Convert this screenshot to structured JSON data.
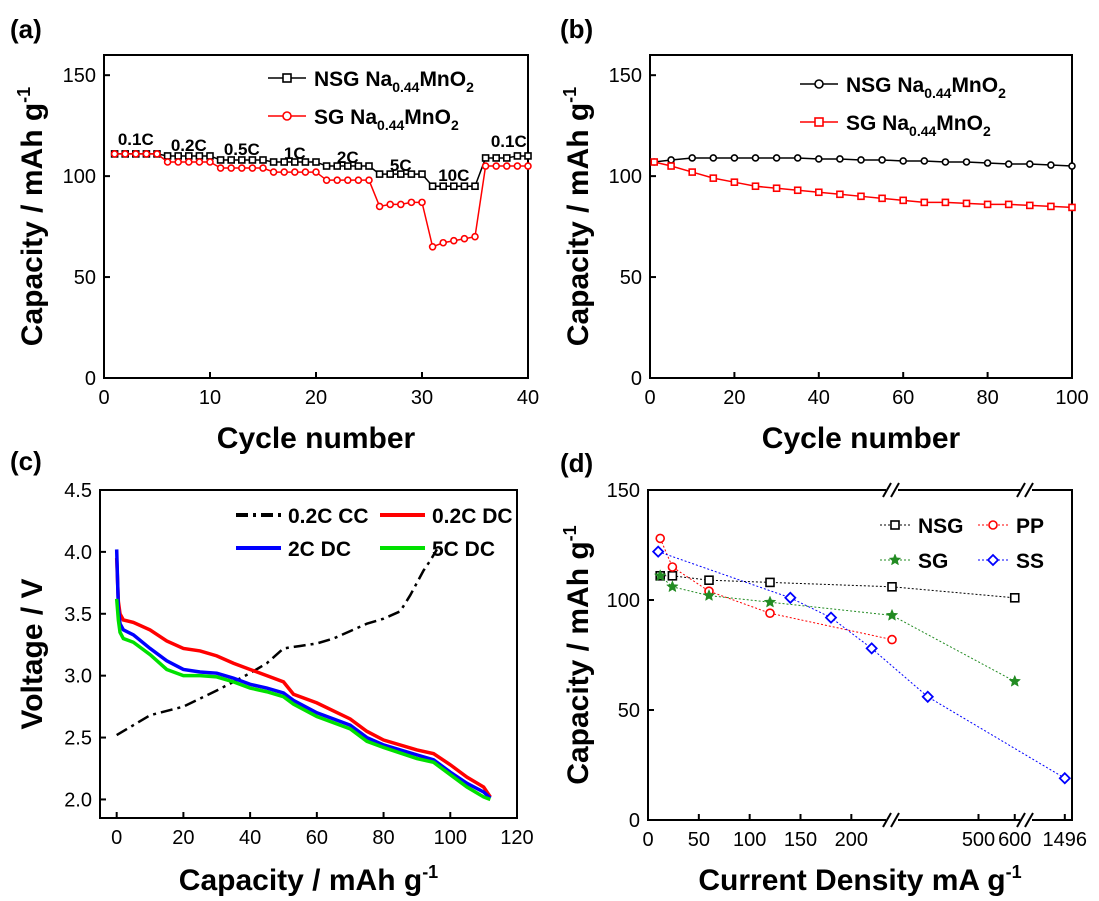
{
  "colors": {
    "black": "#000000",
    "red": "#ff0000",
    "blue": "#0000ff",
    "green": "#00e000",
    "darkgreen": "#228b22"
  },
  "chart_data": [
    {
      "panel": "(a)",
      "type": "line",
      "xlabel": "Cycle number",
      "ylabel": "Capacity / mAh g",
      "ylabel_sup": "-1",
      "xlim": [
        0,
        40
      ],
      "ylim": [
        0,
        160
      ],
      "xticks": [
        0,
        10,
        20,
        30,
        40
      ],
      "yticks": [
        0,
        50,
        100,
        150
      ],
      "legend_position": "top-right",
      "annotations": [
        "0.1C",
        "0.2C",
        "0.5C",
        "1C",
        "2C",
        "5C",
        "10C",
        "0.1C"
      ],
      "series": [
        {
          "name": "NSG Na0.44MnO2",
          "name_base": "NSG Na",
          "name_sub": "0.44",
          "name_mid": "MnO",
          "name_sub2": "2",
          "color": "#000000",
          "marker": "square",
          "x": [
            1,
            2,
            3,
            4,
            5,
            6,
            7,
            8,
            9,
            10,
            11,
            12,
            13,
            14,
            15,
            16,
            17,
            18,
            19,
            20,
            21,
            22,
            23,
            24,
            25,
            26,
            27,
            28,
            29,
            30,
            31,
            32,
            33,
            34,
            35,
            36,
            37,
            38,
            39,
            40
          ],
          "y": [
            111,
            111,
            111,
            111,
            111,
            110,
            110,
            110,
            110,
            110,
            108,
            108,
            108,
            108,
            108,
            107,
            107,
            107,
            107,
            107,
            105,
            105,
            105,
            105,
            105,
            101,
            101,
            101,
            101,
            101,
            95,
            95,
            95,
            95,
            95,
            109,
            109,
            109,
            110,
            110
          ]
        },
        {
          "name": "SG Na0.44MnO2",
          "name_base": "SG Na",
          "name_sub": "0.44",
          "name_mid": "MnO",
          "name_sub2": "2",
          "color": "#ff0000",
          "marker": "circle",
          "x": [
            1,
            2,
            3,
            4,
            5,
            6,
            7,
            8,
            9,
            10,
            11,
            12,
            13,
            14,
            15,
            16,
            17,
            18,
            19,
            20,
            21,
            22,
            23,
            24,
            25,
            26,
            27,
            28,
            29,
            30,
            31,
            32,
            33,
            34,
            35,
            36,
            37,
            38,
            39,
            40
          ],
          "y": [
            111,
            111,
            111,
            111,
            111,
            107,
            107,
            107,
            107,
            107,
            104,
            104,
            104,
            104,
            104,
            102,
            102,
            102,
            102,
            102,
            98,
            98,
            98,
            98,
            98,
            85,
            86,
            86,
            87,
            87,
            65,
            67,
            68,
            69,
            70,
            105,
            105,
            105,
            105,
            105
          ]
        }
      ]
    },
    {
      "panel": "(b)",
      "type": "line",
      "xlabel": "Cycle number",
      "ylabel": "Capacity / mAh g",
      "ylabel_sup": "-1",
      "xlim": [
        0,
        100
      ],
      "ylim": [
        0,
        160
      ],
      "xticks": [
        0,
        20,
        40,
        60,
        80,
        100
      ],
      "yticks": [
        0,
        50,
        100,
        150
      ],
      "legend_position": "top-right",
      "series": [
        {
          "name": "NSG Na0.44MnO2",
          "name_base": "NSG Na",
          "name_sub": "0.44",
          "name_mid": "MnO",
          "name_sub2": "2",
          "color": "#000000",
          "marker": "circle",
          "x": [
            1,
            5,
            10,
            15,
            20,
            25,
            30,
            35,
            40,
            45,
            50,
            55,
            60,
            65,
            70,
            75,
            80,
            85,
            90,
            95,
            100
          ],
          "y": [
            107,
            108,
            109,
            109,
            109,
            109,
            109,
            109,
            108.5,
            108.5,
            108,
            108,
            107.5,
            107.5,
            107,
            107,
            106.5,
            106,
            106,
            105.5,
            105
          ]
        },
        {
          "name": "SG Na0.44MnO2",
          "name_base": "SG Na",
          "name_sub": "0.44",
          "name_mid": "MnO",
          "name_sub2": "2",
          "color": "#ff0000",
          "marker": "square",
          "x": [
            1,
            5,
            10,
            15,
            20,
            25,
            30,
            35,
            40,
            45,
            50,
            55,
            60,
            65,
            70,
            75,
            80,
            85,
            90,
            95,
            100
          ],
          "y": [
            107,
            105,
            102,
            99,
            97,
            95,
            94,
            93,
            92,
            91,
            90,
            89,
            88,
            87,
            87,
            86.5,
            86,
            86,
            85.5,
            85,
            84.5
          ]
        }
      ]
    },
    {
      "panel": "(c)",
      "type": "line",
      "xlabel": "Capacity / mAh g",
      "xlabel_sup": "-1",
      "ylabel": "Voltage / V",
      "xlim": [
        -5,
        120
      ],
      "ylim": [
        1.85,
        4.5
      ],
      "xticks": [
        0,
        20,
        40,
        60,
        80,
        100,
        120
      ],
      "yticks": [
        2.0,
        2.5,
        3.0,
        3.5,
        4.0,
        4.5
      ],
      "ytick_labels": [
        "2.0",
        "2.5",
        "3.0",
        "3.5",
        "4.0",
        "4.5"
      ],
      "legend_position": "top",
      "series": [
        {
          "name": "0.2C CC",
          "color": "#000000",
          "dash": "dashdot",
          "x": [
            0,
            5,
            10,
            20,
            30,
            40,
            45,
            50,
            55,
            60,
            65,
            70,
            75,
            80,
            85,
            88,
            90,
            92,
            94,
            96
          ],
          "y": [
            2.52,
            2.6,
            2.68,
            2.75,
            2.88,
            3.02,
            3.1,
            3.22,
            3.24,
            3.26,
            3.3,
            3.36,
            3.42,
            3.46,
            3.52,
            3.65,
            3.75,
            3.85,
            3.93,
            4.02
          ]
        },
        {
          "name": "0.2C DC",
          "color": "#ff0000",
          "x": [
            0,
            0.5,
            1,
            2,
            5,
            10,
            15,
            20,
            25,
            30,
            35,
            40,
            45,
            50,
            53,
            60,
            70,
            75,
            80,
            90,
            95,
            100,
            105,
            110,
            112
          ],
          "y": [
            3.95,
            3.6,
            3.5,
            3.45,
            3.43,
            3.37,
            3.28,
            3.22,
            3.2,
            3.16,
            3.1,
            3.05,
            3.0,
            2.95,
            2.85,
            2.78,
            2.65,
            2.55,
            2.48,
            2.4,
            2.37,
            2.28,
            2.18,
            2.1,
            2.02
          ]
        },
        {
          "name": "2C DC",
          "color": "#0000ff",
          "x": [
            0,
            0.5,
            1,
            2,
            5,
            10,
            15,
            20,
            25,
            30,
            35,
            40,
            45,
            50,
            53,
            60,
            70,
            75,
            80,
            90,
            95,
            100,
            105,
            110,
            112
          ],
          "y": [
            4.02,
            3.55,
            3.42,
            3.37,
            3.33,
            3.22,
            3.12,
            3.05,
            3.03,
            3.02,
            2.98,
            2.93,
            2.9,
            2.86,
            2.8,
            2.7,
            2.6,
            2.5,
            2.44,
            2.36,
            2.32,
            2.22,
            2.13,
            2.06,
            2.01
          ]
        },
        {
          "name": "5C DC",
          "color": "#00e000",
          "x": [
            0,
            0.5,
            1,
            2,
            5,
            10,
            15,
            20,
            25,
            30,
            35,
            40,
            45,
            50,
            53,
            60,
            70,
            75,
            80,
            90,
            95,
            100,
            105,
            110,
            112
          ],
          "y": [
            3.62,
            3.45,
            3.35,
            3.3,
            3.27,
            3.17,
            3.05,
            3.0,
            3.0,
            2.99,
            2.95,
            2.9,
            2.87,
            2.83,
            2.77,
            2.67,
            2.57,
            2.47,
            2.42,
            2.33,
            2.3,
            2.2,
            2.1,
            2.02,
            2.0
          ]
        }
      ]
    },
    {
      "panel": "(d)",
      "type": "scatter",
      "xlabel": "Current Density mA g",
      "xlabel_sup": "-1",
      "ylabel": "Capacity / mAh g",
      "ylabel_sup": "-1",
      "ylim": [
        0,
        150
      ],
      "yticks": [
        0,
        50,
        100,
        150
      ],
      "xticks": [
        0,
        50,
        100,
        150,
        200,
        500,
        600,
        1496
      ],
      "x_axis": "broken",
      "legend_position": "top-right",
      "series": [
        {
          "name": "NSG",
          "color": "#000000",
          "marker": "square",
          "x": [
            12,
            24,
            60,
            120,
            240,
            600
          ],
          "y": [
            111,
            111,
            109,
            108,
            106,
            101
          ]
        },
        {
          "name": "PP",
          "color": "#ff0000",
          "marker": "circle",
          "x": [
            12,
            24,
            60,
            120,
            240
          ],
          "y": [
            128,
            115,
            104,
            94,
            82
          ]
        },
        {
          "name": "SG",
          "color": "#228b22",
          "marker": "star",
          "x": [
            12,
            24,
            60,
            120,
            240,
            600
          ],
          "y": [
            111,
            106,
            102,
            99,
            93,
            63
          ]
        },
        {
          "name": "SS",
          "color": "#0000ff",
          "marker": "diamond",
          "x": [
            10,
            140,
            180,
            220,
            360,
            1496
          ],
          "y": [
            122,
            101,
            92,
            78,
            56,
            19
          ]
        }
      ]
    }
  ]
}
